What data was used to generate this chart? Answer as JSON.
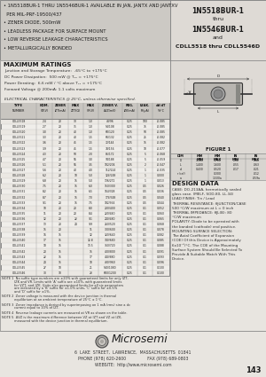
{
  "bg_color": "#dedbd6",
  "body_bg": "#e8e5e0",
  "white": "#ffffff",
  "header_left_bg": "#ccc9c4",
  "header_right_bg": "#dedad5",
  "table_header_bg": "#c8c5c0",
  "table_alt_bg": "#dedad5",
  "footer_bg": "#e8e5e0",
  "text_dark": "#1a1a1a",
  "text_mid": "#333333",
  "border_color": "#888888",
  "title_right_lines": [
    "1N5518BUR-1",
    "thru",
    "1N5546BUR-1",
    "and",
    "CDLL5518 thru CDLL5546D"
  ],
  "bullet_lines": [
    "• 1N5518BUR-1 THRU 1N5546BUR-1 AVAILABLE IN JAN, JANTX AND JANTXV",
    "  PER MIL-PRF-19500/437",
    "• ZENER DIODE, 500mW",
    "• LEADLESS PACKAGE FOR SURFACE MOUNT",
    "• LOW REVERSE LEAKAGE CHARACTERISTICS",
    "• METALLURGICALLY BONDED"
  ],
  "max_ratings_title": "MAXIMUM RATINGS",
  "max_ratings": [
    "Junction and Storage Temperature:  -65°C to +175°C",
    "DC Power Dissipation:  500 mW @ T₂₂ = +175°C",
    "Power Derating:  6.6 mW / °C above T₂₂ = +175°C",
    "Forward Voltage @ 200mA: 1.1 volts maximum"
  ],
  "elec_char_title": "ELECTRICAL CHARACTERISTICS @ 25°C, unless otherwise specified.",
  "col_headers_line1": [
    "TYPE",
    "NOMINAL",
    "ZENER",
    "MAX ZENER",
    "MAXIMUM",
    "ZENER VOLTAGE",
    "REGULATOR",
    "LEAKAGE",
    "dV/dT"
  ],
  "col_headers_line2": [
    "NUMBER",
    "ZENER VOLT",
    "TEST CURRENT",
    "IMPEDANCE",
    "DC BLOCKING",
    "REGULATION",
    "CURRENT",
    "CURRENT Ir",
    "TEMP COEFF"
  ],
  "col_headers_line3": [
    "",
    "",
    "",
    "AT IZTM",
    "VOLTAGE",
    "AT VOLTAGE",
    "",
    "",
    ""
  ],
  "col_sub1": [
    "",
    "VZ (VOLTS)",
    "IZT (mA)",
    "ZZT (Ω)",
    "VR (VOLTS)",
    "ΔVZ (mV)",
    "IZK (mA)",
    "IR (μA)",
    "%/°C"
  ],
  "row_data": [
    [
      "CDLL5518",
      "2.4",
      "20",
      "30",
      "1.0",
      "48/96",
      "0.25",
      "100",
      "-0.085"
    ],
    [
      "CDLL5519",
      "2.7",
      "20",
      "35",
      "1.0",
      "54/108",
      "0.25",
      "75",
      "-0.085"
    ],
    [
      "CDLL5520",
      "3.0",
      "20",
      "40",
      "1.0",
      "60/120",
      "0.25",
      "50",
      "-0.085"
    ],
    [
      "CDLL5521",
      "3.3",
      "20",
      "40",
      "1.5",
      "66/132",
      "0.25",
      "25",
      "-0.082"
    ],
    [
      "CDLL5522",
      "3.6",
      "20",
      "45",
      "1.5",
      "72/144",
      "0.25",
      "15",
      "-0.082"
    ],
    [
      "CDLL5523",
      "3.9",
      "20",
      "45",
      "1.5",
      "78/156",
      "0.25",
      "10",
      "-0.077"
    ],
    [
      "CDLL5524",
      "4.3",
      "20",
      "50",
      "2.0",
      "86/172",
      "0.25",
      "5",
      "-0.068"
    ],
    [
      "CDLL5525",
      "4.7",
      "20",
      "55",
      "3.0",
      "94/188",
      "0.25",
      "5",
      "-0.059"
    ],
    [
      "CDLL5526",
      "5.1",
      "20",
      "55",
      "3.5",
      "102/204",
      "0.25",
      "2",
      "-0.047"
    ],
    [
      "CDLL5527",
      "5.6",
      "20",
      "40",
      "4.0",
      "112/224",
      "0.25",
      "1",
      "-0.035"
    ],
    [
      "CDLL5528",
      "6.2",
      "20",
      "10",
      "5.0",
      "124/248",
      "0.25",
      "1",
      "0.000"
    ],
    [
      "CDLL5529",
      "6.8",
      "20",
      "15",
      "5.0",
      "136/272",
      "0.25",
      "1",
      "0.013"
    ],
    [
      "CDLL5530",
      "7.5",
      "20",
      "15",
      "6.0",
      "150/300",
      "0.25",
      "0.5",
      "0.026"
    ],
    [
      "CDLL5531",
      "8.2",
      "20",
      "15",
      "6.5",
      "164/328",
      "0.25",
      "0.5",
      "0.036"
    ],
    [
      "CDLL5532",
      "8.7",
      "20",
      "15",
      "7.0",
      "174/348",
      "0.25",
      "0.5",
      "0.040"
    ],
    [
      "CDLL5533",
      "9.1",
      "20",
      "15",
      "7.5",
      "182/364",
      "0.25",
      "0.5",
      "0.044"
    ],
    [
      "CDLL5534",
      "10",
      "20",
      "20",
      "8.0",
      "200/400",
      "0.25",
      "0.1",
      "0.052"
    ],
    [
      "CDLL5535",
      "11",
      "20",
      "20",
      "8.4",
      "220/440",
      "0.25",
      "0.1",
      "0.060"
    ],
    [
      "CDLL5536",
      "12",
      "20",
      "22",
      "9.1",
      "240/480",
      "0.25",
      "0.1",
      "0.065"
    ],
    [
      "CDLL5537",
      "13",
      "20",
      "24",
      "9.9",
      "260/520",
      "0.25",
      "0.1",
      "0.068"
    ],
    [
      "CDLL5538",
      "15",
      "20",
      "",
      "11",
      "300/600",
      "0.25",
      "0.1",
      "0.078"
    ],
    [
      "CDLL5539",
      "16",
      "15",
      "",
      "12",
      "320/640",
      "0.25",
      "0.1",
      "0.082"
    ],
    [
      "CDLL5540",
      "17",
      "15",
      "",
      "12.8",
      "340/680",
      "0.25",
      "0.1",
      "0.085"
    ],
    [
      "CDLL5541",
      "18",
      "15",
      "",
      "13.5",
      "360/720",
      "0.25",
      "0.1",
      "0.088"
    ],
    [
      "CDLL5542",
      "20",
      "15",
      "",
      "15",
      "400/800",
      "0.25",
      "0.1",
      "0.091"
    ],
    [
      "CDLL5543",
      "22",
      "15",
      "",
      "17",
      "440/880",
      "0.25",
      "0.1",
      "0.093"
    ],
    [
      "CDLL5544",
      "24",
      "15",
      "",
      "18",
      "480/960",
      "0.25",
      "0.1",
      "0.096"
    ],
    [
      "CDLL5545",
      "27",
      "10",
      "",
      "21",
      "540/1080",
      "0.25",
      "0.1",
      "0.100"
    ],
    [
      "CDLL5546",
      "30",
      "10",
      "",
      "23",
      "600/1200",
      "0.25",
      "0.1",
      "0.100"
    ]
  ],
  "notes": [
    [
      "NOTE 1",
      "No suffix type numbers are ±20% with guaranteed limits for only IZT, IZK and VR. Limits with 'A' suffix are ±10%, with guaranteed limits for VZT, and IZK. Units also guaranteed limits for all six parameters are indicated by a 'B' suffix for ±1.0% units, 'C' suffix for ±0.5% and 'D' suffix for ±1%."
    ],
    [
      "NOTE 2",
      "Zener voltage is measured with the device junction in thermal equilibrium at an ambient temperature of 25°C ± 1°C."
    ],
    [
      "NOTE 3",
      "Zener impedance is derived by superimposing on 1 mA (rms) sine a dc current equal to 10% of IZT."
    ],
    [
      "NOTE 4",
      "Reverse leakage currents are measured at VR as shown on the table."
    ],
    [
      "NOTE 5",
      "ΔVZ is the maximum difference between VZ at IZT and VZ at IZK, measured with the device junction in thermal equilibrium."
    ]
  ],
  "design_data_title": "DESIGN DATA",
  "design_data_lines": [
    "CASE: DO-213AA, hermetically sealed",
    "glass case. (MELF, SOD-80, LL-34)",
    "LEAD FINISH: Tin / Lead",
    "THERMAL RESISTANCE: θJUNCTION/CASE",
    "500 °C/W maximum at L = 0 inch",
    "THERMAL IMPEDANCE: θJL(B): 80",
    "°C/W maximum",
    "POLARITY: Diode to be operated with",
    "the banded (cathode) end positive.",
    "MOUNTING SURFACE SELECTION:",
    "The Axial Coefficient of Expansion",
    "(COE) Of this Device is Approximately",
    "6x10⁻⁶/°C. The COE of the Mounting",
    "Surface System Should Be Selected To",
    "Provide A Suitable Match With This",
    "Device."
  ],
  "figure_label": "FIGURE 1",
  "dim_table_rows": [
    [
      "D",
      "3.500",
      "3.700",
      ".138",
      ".146"
    ],
    [
      "L",
      "1.400",
      "1.600",
      ".055",
      ".063"
    ],
    [
      "d",
      "0.430",
      "0.520",
      ".017",
      ".021"
    ],
    [
      "r (ref)",
      "",
      "0.300",
      "",
      ".012"
    ],
    [
      "a",
      "",
      "1.500a",
      "",
      ".059a"
    ]
  ],
  "footer_address": "6  LAKE  STREET,  LAWRENCE,  MASSACHUSETTS  01841",
  "footer_phone": "PHONE (978) 620-2600                FAX (978) 689-0803",
  "footer_website": "WEBSITE:  http://www.microsemi.com",
  "footer_page": "143"
}
